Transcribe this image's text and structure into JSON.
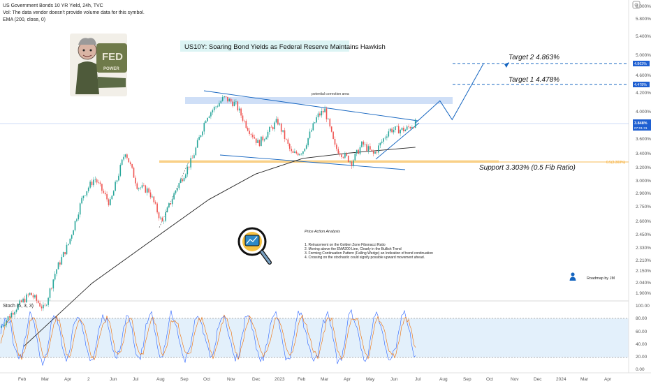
{
  "header": {
    "symbol_line": "US Government Bonds 10 YR Yield, 24h, TVC",
    "vol_line": "Vol: The data vendor doesn't provide volume data for this symbol.",
    "ema_line": "EMA (200, close, 0)"
  },
  "title": "US10Y: Soaring Bond Yields as Federal Reserve Maintains Hawkish",
  "logo": {
    "text": "FED",
    "subtext": "POWER"
  },
  "annotations": {
    "target2": "Target 2  4.863%",
    "target1": "Target 1  4.478%",
    "support": "Support 3.303% (0.5 Fib Ratio)",
    "correction": "potential correction area",
    "fib_label": "0.5(3.303%)",
    "roadmap": "Roadmap by JM"
  },
  "analysis": {
    "heading": "Price Action Analysis",
    "items": [
      "1. Retracement on the Golden Zone Fibonacci Ratio",
      "2. Moving above the EMA200 Line, Clearly in the Bullish Trend",
      "3. Forming Continuation Pattern (Falling Wedge) an Indication of trend continuation",
      "4. Crossing on the stochastic could signify possible upward movement ahead."
    ]
  },
  "price_axis": {
    "labels": [
      "6.000%",
      "5.800%",
      "5.400%",
      "5.000%",
      "4.600%",
      "4.200%",
      "4.000%",
      "3.600%",
      "3.400%",
      "3.200%",
      "3.000%",
      "2.900%",
      "2.750%",
      "2.600%",
      "2.450%",
      "2.330%",
      "2.210%",
      "2.150%",
      "2.040%",
      "1.900%"
    ],
    "current_price": "3.848%",
    "current_sub": "07:01:31",
    "target1_tag": "4.478%",
    "target2_tag": "4.863%"
  },
  "stoch": {
    "label": "Stoch (5, 3, 3)",
    "axis_labels": [
      "100.00",
      "80.00",
      "60.00",
      "40.00",
      "20.00",
      "0.00"
    ]
  },
  "time_axis": {
    "labels": [
      "Feb",
      "Mar",
      "Apr",
      "2",
      "Jun",
      "Jul",
      "Aug",
      "Sep",
      "Oct",
      "Nov",
      "Dec",
      "2023",
      "Feb",
      "Mar",
      "Apr",
      "May",
      "Jun",
      "Jul",
      "Aug",
      "Sep",
      "Oct",
      "Nov",
      "Dec",
      "2024",
      "Mar",
      "Apr"
    ]
  },
  "colors": {
    "bull": "#26a69a",
    "bear": "#ef5350",
    "trend": "#1565c0",
    "fib": "#f5a623",
    "k_line": "#2962ff",
    "d_line": "#ef6c00"
  },
  "chart_data": {
    "type": "candlestick",
    "title": "US10Y: Soaring Bond Yields as Federal Reserve Maintains Hawkish",
    "y_scale": "log",
    "levels": {
      "target2": 4.863,
      "target1": 4.478,
      "support": 3.303,
      "last": 3.848
    },
    "price_path": [
      {
        "date": "2022-01-01",
        "value": 1.72
      },
      {
        "date": "2022-01-20",
        "value": 1.85
      },
      {
        "date": "2022-02-10",
        "value": 1.97
      },
      {
        "date": "2022-02-28",
        "value": 1.85
      },
      {
        "date": "2022-03-15",
        "value": 2.15
      },
      {
        "date": "2022-04-01",
        "value": 2.4
      },
      {
        "date": "2022-04-20",
        "value": 2.9
      },
      {
        "date": "2022-05-05",
        "value": 3.1
      },
      {
        "date": "2022-05-25",
        "value": 2.8
      },
      {
        "date": "2022-06-14",
        "value": 3.45
      },
      {
        "date": "2022-06-30",
        "value": 3.0
      },
      {
        "date": "2022-07-15",
        "value": 2.95
      },
      {
        "date": "2022-08-01",
        "value": 2.6
      },
      {
        "date": "2022-08-20",
        "value": 2.98
      },
      {
        "date": "2022-09-10",
        "value": 3.35
      },
      {
        "date": "2022-09-28",
        "value": 3.95
      },
      {
        "date": "2022-10-21",
        "value": 4.25
      },
      {
        "date": "2022-11-05",
        "value": 4.15
      },
      {
        "date": "2022-11-20",
        "value": 3.8
      },
      {
        "date": "2022-12-05",
        "value": 3.55
      },
      {
        "date": "2022-12-30",
        "value": 3.88
      },
      {
        "date": "2023-01-18",
        "value": 3.4
      },
      {
        "date": "2023-02-01",
        "value": 3.45
      },
      {
        "date": "2023-02-20",
        "value": 3.95
      },
      {
        "date": "2023-03-02",
        "value": 4.05
      },
      {
        "date": "2023-03-15",
        "value": 3.5
      },
      {
        "date": "2023-04-06",
        "value": 3.3
      },
      {
        "date": "2023-04-20",
        "value": 3.55
      },
      {
        "date": "2023-05-05",
        "value": 3.4
      },
      {
        "date": "2023-05-25",
        "value": 3.75
      },
      {
        "date": "2023-06-15",
        "value": 3.75
      },
      {
        "date": "2023-06-28",
        "value": 3.848
      }
    ],
    "ema200_path": [
      {
        "date": "2022-02-01",
        "value": 1.6
      },
      {
        "date": "2022-05-01",
        "value": 2.05
      },
      {
        "date": "2022-08-01",
        "value": 2.5
      },
      {
        "date": "2022-10-01",
        "value": 2.85
      },
      {
        "date": "2022-12-01",
        "value": 3.15
      },
      {
        "date": "2023-02-01",
        "value": 3.35
      },
      {
        "date": "2023-04-01",
        "value": 3.42
      },
      {
        "date": "2023-06-28",
        "value": 3.5
      }
    ],
    "projection_path": [
      {
        "date": "2023-06-28",
        "value": 3.848
      },
      {
        "date": "2023-07-30",
        "value": 4.2
      },
      {
        "date": "2023-08-15",
        "value": 3.9
      },
      {
        "date": "2023-09-25",
        "value": 4.863
      }
    ],
    "stoch_range": [
      0,
      100
    ],
    "stoch_bands": [
      20,
      80
    ]
  }
}
